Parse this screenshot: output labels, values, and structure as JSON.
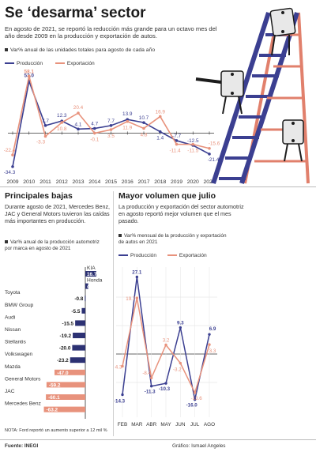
{
  "header": {
    "title": "Se ‘desarma’ sector",
    "intro": "En agosto de 2021, se reportó la reducción más grande para un octavo mes del año desde 2009 en la producción y exportación de autos.",
    "note": "Var% anual de las unidades totales para agosto de cada año"
  },
  "colors": {
    "produccion": "#3b3f91",
    "exportacion": "#e8927c",
    "navy": "#2c3173"
  },
  "chart_data": [
    {
      "type": "line",
      "note": "Var% anual de las unidades totales para agosto de cada año",
      "x": [
        "2009",
        "2010",
        "2011",
        "2012",
        "2013",
        "2014",
        "2015",
        "2016",
        "2017",
        "2018",
        "2019",
        "2020",
        "2021"
      ],
      "series": [
        {
          "name": "Producción",
          "values": [
            -34.3,
            53.0,
            7.7,
            12.3,
            4.1,
            4.7,
            7.7,
            13.9,
            10.7,
            1.4,
            -7.7,
            -12.5,
            -21.4
          ],
          "labels": [
            "-34.3",
            "53.0",
            "7.7",
            "12.3",
            "4.1",
            "4.7",
            "7.7",
            "13.9",
            "10.7",
            "1.4",
            "-7.7",
            "-12.5",
            "-21.4"
          ]
        },
        {
          "name": "Exportación",
          "values": [
            -22.4,
            58.1,
            -3.3,
            10.8,
            20.4,
            -0.1,
            3.5,
            11.9,
            4.8,
            16.9,
            -11.4,
            -11.5,
            -15.6
          ],
          "labels": [
            "-22.4",
            "58.1",
            "-3.3",
            "10.8",
            "20.4",
            "-0.1",
            "3.5",
            "11.9",
            "4.8",
            "16.9",
            "-11.4",
            "-11.5",
            "-15.6"
          ]
        }
      ]
    },
    {
      "type": "bar",
      "note": "Var% anual de la producción automotriz por marca en agosto de 2021",
      "categories": [
        "KIA",
        "Honda",
        "Toyota",
        "BMW Group",
        "Audi",
        "Nissan",
        "Stellantis",
        "Volkswagen",
        "Mazda",
        "General Motors",
        "JAC",
        "Mercedes Benz"
      ],
      "values": [
        16.7,
        4.4,
        -0.8,
        -5.5,
        -15.5,
        -19.2,
        -20.0,
        -23.2,
        -47.0,
        -59.2,
        -60.1,
        -63.2
      ],
      "labels": [
        "16.7",
        "4.4",
        "-0.8",
        "-5.5",
        "-15.5",
        "-19.2",
        "-20.0",
        "-23.2",
        "-47.0",
        "-59.2",
        "-60.1",
        "-63.2"
      ]
    },
    {
      "type": "line",
      "note": "Var% mensual de la producción y exportación de autos en 2021",
      "x": [
        "FEB",
        "MAR",
        "ABR",
        "MAY",
        "JUN",
        "JUL",
        "AGO"
      ],
      "series": [
        {
          "name": "Producción",
          "values": [
            -14.3,
            27.1,
            -11.3,
            -10.3,
            9.3,
            -16.0,
            6.9
          ],
          "labels": [
            "-14.3",
            "27.1",
            "-11.3",
            "-10.3",
            "9.3",
            "-16.0",
            "6.9"
          ]
        },
        {
          "name": "Exportación",
          "values": [
            -4.3,
            19.7,
            -8.4,
            3.2,
            -3.2,
            -13.6,
            3.3
          ],
          "labels": [
            "-4.3",
            "19.7",
            "-8.4",
            "3.2",
            "-3.2",
            "-13.6",
            "3.3"
          ]
        }
      ]
    }
  ],
  "legend": {
    "produccion": "Producción",
    "exportacion": "Exportación"
  },
  "section2": {
    "title": "Principales bajas",
    "text": "Durante agosto de 2021, Mercedes Benz, JAC y General Motors tuvieron las caídas más importantes en producción.",
    "note": "Var% anual de la producción automotriz por marca en agosto de 2021",
    "footnote": "NOTA: Ford reportó un aumento superior a 12 mil %"
  },
  "section3": {
    "title": "Mayor volumen que julio",
    "text": "La producción y exportación del sector automotriz en agosto reportó mejor volumen que el mes pasado.",
    "note": "Var% mensual de la producción y exportación de autos en 2021"
  },
  "footer": {
    "source": "Fuente: INEGI",
    "credit": "Gráfico: Ismael Angeles"
  }
}
